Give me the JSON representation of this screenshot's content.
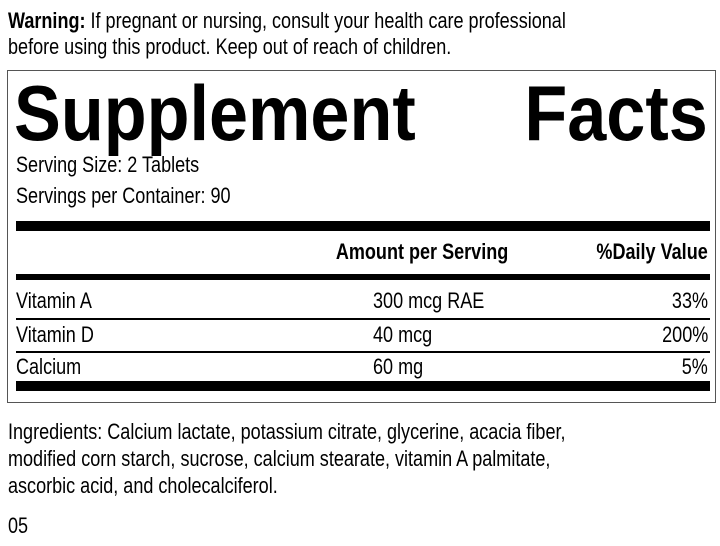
{
  "warning": {
    "label": "Warning:",
    "line1": " If pregnant or nursing, consult your health care professional",
    "line2": "before using this product. Keep out of reach of children."
  },
  "facts": {
    "title_word1": "Supplement",
    "title_word2": "Facts",
    "serving_size": "Serving Size: 2 Tablets",
    "servings_per_container": "Servings per Container: 90",
    "header": {
      "amount": "Amount per Serving",
      "daily_value": "%Daily Value"
    },
    "rows": [
      {
        "name": "Vitamin A",
        "amount": "300 mcg RAE",
        "dv": "33%"
      },
      {
        "name": "Vitamin D",
        "amount": "40 mcg",
        "dv": "200%"
      },
      {
        "name": "Calcium",
        "amount": "60 mg",
        "dv": "5%"
      }
    ]
  },
  "ingredients": {
    "line1": "Ingredients: Calcium lactate, potassium citrate, glycerine, acacia fiber,",
    "line2": "modified corn starch, sucrose, calcium stearate, vitamin A palmitate,",
    "line3": "ascorbic acid, and cholecalciferol."
  },
  "code": "05"
}
